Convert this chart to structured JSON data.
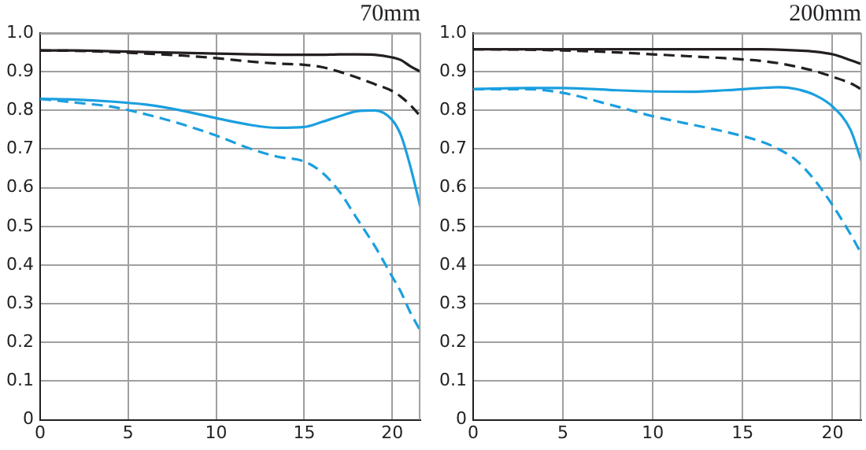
{
  "chart_data": [
    {
      "type": "line",
      "title": "70mm",
      "x": [
        0,
        2,
        4,
        6,
        8,
        10,
        12,
        13.5,
        15,
        16,
        17,
        18,
        19,
        20,
        20.5,
        21,
        21.6
      ],
      "series": [
        {
          "color": "#231f20",
          "line_style": "solid",
          "values": [
            0.955,
            0.955,
            0.953,
            0.951,
            0.949,
            0.947,
            0.945,
            0.944,
            0.944,
            0.944,
            0.945,
            0.945,
            0.944,
            0.937,
            0.93,
            0.915,
            0.9
          ]
        },
        {
          "color": "#231f20",
          "line_style": "dashed",
          "values": [
            0.955,
            0.954,
            0.951,
            0.947,
            0.942,
            0.935,
            0.926,
            0.921,
            0.918,
            0.912,
            0.9,
            0.885,
            0.868,
            0.85,
            0.835,
            0.815,
            0.785
          ]
        },
        {
          "color": "#1a9fdf",
          "line_style": "solid",
          "values": [
            0.83,
            0.828,
            0.823,
            0.815,
            0.8,
            0.78,
            0.762,
            0.755,
            0.757,
            0.77,
            0.785,
            0.798,
            0.8,
            0.775,
            0.735,
            0.66,
            0.55
          ]
        },
        {
          "color": "#1a9fdf",
          "line_style": "dashed",
          "values": [
            0.83,
            0.82,
            0.81,
            0.79,
            0.765,
            0.735,
            0.7,
            0.68,
            0.668,
            0.64,
            0.59,
            0.52,
            0.45,
            0.37,
            0.33,
            0.28,
            0.23
          ]
        }
      ],
      "xlim": [
        0,
        21.6
      ],
      "ylim": [
        0,
        1
      ],
      "xticks": [
        0,
        5,
        10,
        15,
        20
      ],
      "yticks": [
        0,
        0.1,
        0.2,
        0.3,
        0.4,
        0.5,
        0.6,
        0.7,
        0.8,
        0.9,
        {
          "value": 1,
          "label": "1.0"
        }
      ],
      "grid": true,
      "legend": false
    },
    {
      "type": "line",
      "title": "200mm",
      "x": [
        0,
        3,
        5,
        8,
        10,
        12,
        14,
        16,
        17,
        18,
        19,
        20,
        21,
        21.6
      ],
      "series": [
        {
          "color": "#231f20",
          "line_style": "solid",
          "values": [
            0.958,
            0.958,
            0.958,
            0.958,
            0.958,
            0.958,
            0.958,
            0.958,
            0.957,
            0.955,
            0.952,
            0.945,
            0.93,
            0.92
          ]
        },
        {
          "color": "#231f20",
          "line_style": "dashed",
          "values": [
            0.958,
            0.957,
            0.955,
            0.95,
            0.945,
            0.94,
            0.935,
            0.928,
            0.922,
            0.913,
            0.902,
            0.887,
            0.87,
            0.855
          ]
        },
        {
          "color": "#1a9fdf",
          "line_style": "solid",
          "values": [
            0.855,
            0.858,
            0.858,
            0.852,
            0.849,
            0.848,
            0.852,
            0.858,
            0.86,
            0.855,
            0.84,
            0.81,
            0.75,
            0.67
          ]
        },
        {
          "color": "#1a9fdf",
          "line_style": "dashed",
          "values": [
            0.855,
            0.855,
            0.845,
            0.81,
            0.785,
            0.765,
            0.745,
            0.72,
            0.7,
            0.67,
            0.62,
            0.555,
            0.48,
            0.43
          ]
        }
      ],
      "xlim": [
        0,
        21.6
      ],
      "ylim": [
        0,
        1
      ],
      "xticks": [
        0,
        5,
        10,
        15,
        20
      ],
      "yticks": [
        0,
        0.1,
        0.2,
        0.3,
        0.4,
        0.5,
        0.6,
        0.7,
        0.8,
        0.9,
        {
          "value": 1,
          "label": "1.0"
        }
      ],
      "grid": true,
      "legend": false
    }
  ]
}
